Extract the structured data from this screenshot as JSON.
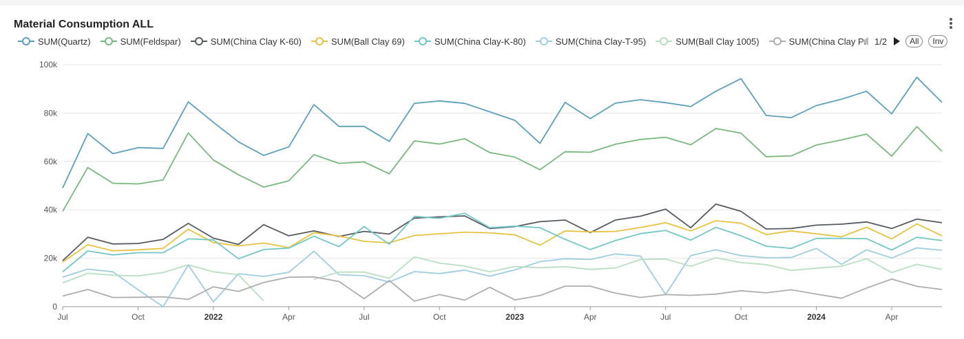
{
  "panel": {
    "title": "Material Consumption ALL"
  },
  "legend": {
    "page": "1/2",
    "all_label": "All",
    "inv_label": "Inv"
  },
  "chart_data": {
    "type": "line",
    "title": "Material Consumption ALL",
    "ylim": [
      0,
      100000
    ],
    "y_ticks": [
      0,
      20000,
      40000,
      60000,
      80000,
      100000
    ],
    "y_tick_labels": [
      "0",
      "20k",
      "40k",
      "60k",
      "80k",
      "100k"
    ],
    "x_ticks": [
      {
        "i": 0,
        "label": "Jul",
        "bold": false
      },
      {
        "i": 3,
        "label": "Oct",
        "bold": false
      },
      {
        "i": 6,
        "label": "2022",
        "bold": true
      },
      {
        "i": 9,
        "label": "Apr",
        "bold": false
      },
      {
        "i": 12,
        "label": "Jul",
        "bold": false
      },
      {
        "i": 15,
        "label": "Oct",
        "bold": false
      },
      {
        "i": 18,
        "label": "2023",
        "bold": true
      },
      {
        "i": 21,
        "label": "Apr",
        "bold": false
      },
      {
        "i": 24,
        "label": "Jul",
        "bold": false
      },
      {
        "i": 27,
        "label": "Oct",
        "bold": false
      },
      {
        "i": 30,
        "label": "2024",
        "bold": true
      },
      {
        "i": 33,
        "label": "Apr",
        "bold": false
      }
    ],
    "x": [
      "2021-07",
      "2021-08",
      "2021-09",
      "2021-10",
      "2021-11",
      "2021-12",
      "2022-01",
      "2022-02",
      "2022-03",
      "2022-04",
      "2022-05",
      "2022-06",
      "2022-07",
      "2022-08",
      "2022-09",
      "2022-10",
      "2022-11",
      "2022-12",
      "2023-01",
      "2023-02",
      "2023-03",
      "2023-04",
      "2023-05",
      "2023-06",
      "2023-07",
      "2023-08",
      "2023-09",
      "2023-10",
      "2023-11",
      "2023-12",
      "2024-01",
      "2024-02",
      "2024-03",
      "2024-04",
      "2024-05",
      "2024-06"
    ],
    "grid": true,
    "legend_position": "top",
    "series": [
      {
        "name": "SUM(Quartz)",
        "color": "#5b9fbd",
        "values": [
          49000,
          71500,
          63200,
          65700,
          65400,
          84600,
          76200,
          68100,
          62500,
          66000,
          83500,
          74500,
          74500,
          68300,
          84000,
          85000,
          84000,
          80500,
          77000,
          67500,
          84400,
          77700,
          84100,
          85500,
          84300,
          82700,
          89000,
          94200,
          79000,
          78100,
          83100,
          85700,
          89000,
          79700,
          94800,
          84400
        ]
      },
      {
        "name": "SUM(Feldspar)",
        "color": "#78b87e",
        "values": [
          39400,
          57500,
          51000,
          50700,
          52400,
          71800,
          60600,
          54500,
          49400,
          52000,
          62800,
          59200,
          59800,
          54900,
          68500,
          67200,
          69400,
          63700,
          61800,
          56600,
          64000,
          63800,
          67100,
          69100,
          70000,
          66900,
          73600,
          71700,
          62000,
          62300,
          66800,
          68900,
          71300,
          62200,
          74400,
          64200
        ]
      },
      {
        "name": "SUM(China Clay K-60)",
        "color": "#555a5f",
        "values": [
          19000,
          28700,
          25900,
          26100,
          27800,
          34400,
          28300,
          25700,
          33900,
          29300,
          31300,
          29000,
          31100,
          30000,
          36600,
          37100,
          37500,
          32300,
          33100,
          35100,
          35800,
          30600,
          35800,
          37400,
          40300,
          32600,
          42400,
          39400,
          32100,
          32300,
          33700,
          34100,
          35000,
          32300,
          36200,
          34700
        ]
      },
      {
        "name": "SUM(Ball Clay 69)",
        "color": "#e7c242",
        "values": [
          18400,
          25600,
          23100,
          23500,
          24100,
          32000,
          26500,
          25100,
          26300,
          24400,
          30600,
          29200,
          27000,
          26400,
          29400,
          30100,
          30800,
          30500,
          29700,
          25400,
          31300,
          30900,
          31100,
          32700,
          34700,
          31300,
          35500,
          34500,
          29800,
          31300,
          30100,
          28900,
          32800,
          28000,
          34200,
          29300
        ]
      },
      {
        "name": "SUM(China Clay-K-80)",
        "color": "#72c7c4",
        "values": [
          14400,
          23000,
          21400,
          22300,
          22300,
          28000,
          27600,
          19800,
          23600,
          24200,
          29100,
          24800,
          33100,
          25800,
          37300,
          36500,
          38600,
          32600,
          33300,
          32600,
          27800,
          23600,
          27300,
          30200,
          31500,
          27500,
          32800,
          29300,
          25000,
          24100,
          28200,
          28200,
          28100,
          23400,
          28700,
          27300
        ]
      },
      {
        "name": "SUM(China Clay-T-95)",
        "color": "#9fcde0",
        "values": [
          12200,
          15500,
          14400,
          7000,
          0,
          17200,
          2000,
          13600,
          12500,
          14200,
          22900,
          13200,
          12800,
          10200,
          14500,
          13700,
          15100,
          12600,
          15200,
          18600,
          19800,
          19500,
          21800,
          20900,
          5000,
          21100,
          23500,
          21100,
          20200,
          20300,
          24100,
          17500,
          23500,
          20100,
          24300,
          23300
        ]
      },
      {
        "name": "SUM(Ball Clay 1005)",
        "color": "#b9dfc3",
        "values": [
          9800,
          13800,
          13000,
          12700,
          14100,
          17300,
          14400,
          13200,
          2400,
          null,
          11300,
          14300,
          14300,
          11700,
          20600,
          18000,
          16800,
          14400,
          16600,
          16100,
          16500,
          15400,
          16000,
          19500,
          19700,
          16700,
          20200,
          18200,
          17400,
          15000,
          15900,
          16700,
          19800,
          14100,
          17500,
          15400
        ]
      },
      {
        "name": "SUM(China Clay Premium)",
        "color": "#adadad",
        "values": [
          4400,
          7100,
          3800,
          3900,
          4100,
          3000,
          8200,
          6300,
          10000,
          12200,
          12300,
          10400,
          3300,
          10800,
          2300,
          5000,
          2700,
          8000,
          2800,
          4600,
          8500,
          8500,
          5600,
          3800,
          5000,
          4700,
          5200,
          6600,
          5700,
          7000,
          5200,
          3500,
          7700,
          11400,
          8400,
          7100
        ]
      }
    ]
  }
}
